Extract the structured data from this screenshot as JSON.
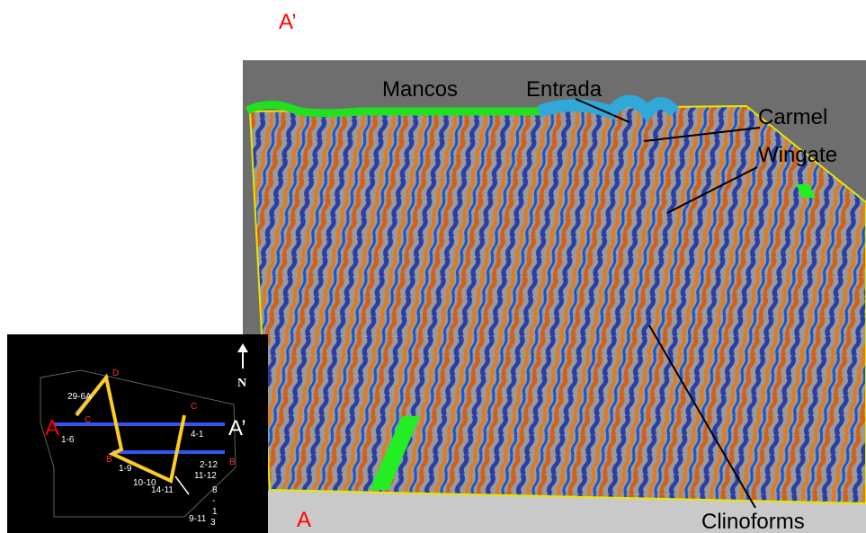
{
  "labels": {
    "a_prime_top": "A’",
    "mancos": "Mancos",
    "entrada": "Entrada",
    "carmel": "Carmel",
    "wingate": "Wingate",
    "clinoforms": "Clinoforms",
    "a_bottom": "A"
  },
  "map": {
    "north": "N",
    "section_start": "A",
    "section_end": "A’",
    "wells": [
      "29-6A",
      "1-6",
      "4-1",
      "1-9",
      "2-12",
      "11-12",
      "10-10",
      "14-11",
      "8",
      "-",
      "1",
      "9-11",
      "3"
    ],
    "line_letters": [
      "D",
      "C",
      "C",
      "B",
      "B"
    ]
  }
}
